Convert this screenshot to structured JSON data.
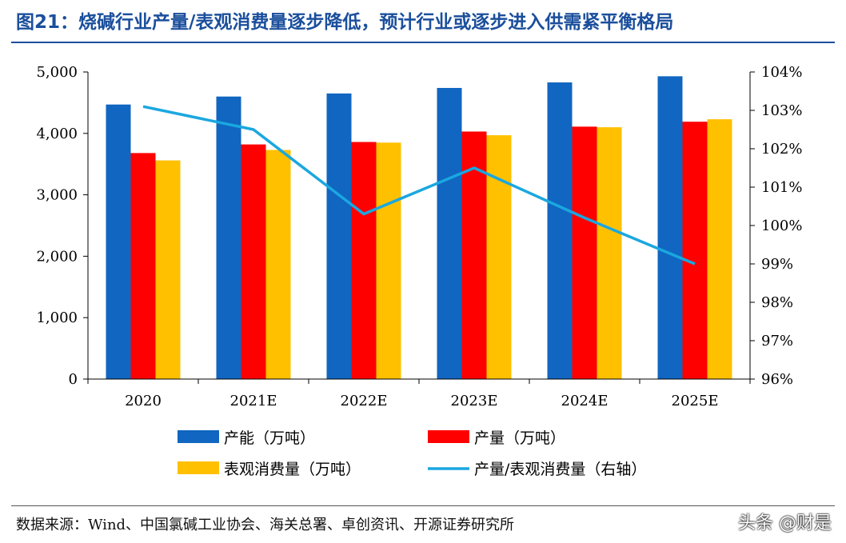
{
  "figure": {
    "title": "图21：烧碱行业产量/表观消费量逐步降低，预计行业或逐步进入供需紧平衡格局",
    "source": "数据来源：Wind、中国氯碱工业协会、海关总署、卓创资讯、开源证券研究所",
    "watermark": "头条 @财是"
  },
  "chart_data": {
    "type": "bar",
    "categories": [
      "2020",
      "2021E",
      "2022E",
      "2023E",
      "2024E",
      "2025E"
    ],
    "series": [
      {
        "name": "产能（万吨）",
        "type": "bar",
        "axis": "left",
        "color": "#1066c0",
        "values": [
          4470,
          4600,
          4650,
          4740,
          4830,
          4930
        ]
      },
      {
        "name": "产量（万吨）",
        "type": "bar",
        "axis": "left",
        "color": "#ff0000",
        "values": [
          3680,
          3820,
          3860,
          4030,
          4110,
          4190
        ]
      },
      {
        "name": "表观消费量（万吨）",
        "type": "bar",
        "axis": "left",
        "color": "#ffc000",
        "values": [
          3560,
          3730,
          3850,
          3970,
          4100,
          4230
        ]
      },
      {
        "name": "产量/表观消费量（右轴）",
        "type": "line",
        "axis": "right",
        "color": "#1aa7e0",
        "values": [
          103.1,
          102.5,
          100.3,
          101.5,
          100.2,
          99.0
        ]
      }
    ],
    "y_left": {
      "min": 0,
      "max": 5000,
      "ticks": [
        "0",
        "1,000",
        "2,000",
        "3,000",
        "4,000",
        "5,000"
      ]
    },
    "y_right": {
      "min": 96,
      "max": 104,
      "ticks": [
        "96%",
        "97%",
        "98%",
        "99%",
        "100%",
        "101%",
        "102%",
        "103%",
        "104%"
      ]
    },
    "grid": false,
    "legend_position": "bottom"
  }
}
